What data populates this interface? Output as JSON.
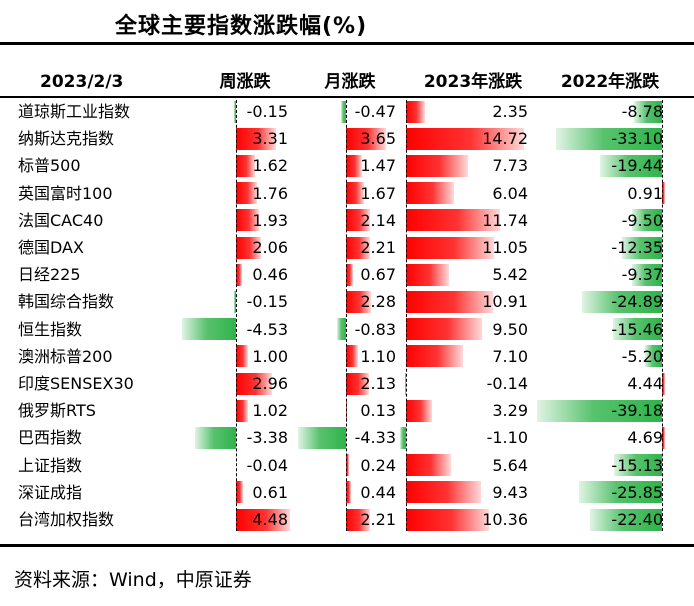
{
  "title": "全球主要指数涨跌幅(%)",
  "source": "资料来源：Wind，中原证券",
  "colors": {
    "positive": "#ff0000",
    "negative": "#2fb34a"
  },
  "chart_data": {
    "type": "table",
    "date_header": "2023/2/3",
    "columns": [
      "周涨跌",
      "月涨跌",
      "2023年涨跌",
      "2022年涨跌"
    ],
    "rows": [
      {
        "name": "道琼斯工业指数",
        "values": [
          -0.15,
          -0.47,
          2.35,
          -8.78
        ]
      },
      {
        "name": "纳斯达克指数",
        "values": [
          3.31,
          3.65,
          14.72,
          -33.1
        ]
      },
      {
        "name": "标普500",
        "values": [
          1.62,
          1.47,
          7.73,
          -19.44
        ]
      },
      {
        "name": "英国富时100",
        "values": [
          1.76,
          1.67,
          6.04,
          0.91
        ]
      },
      {
        "name": "法国CAC40",
        "values": [
          1.93,
          2.14,
          11.74,
          -9.5
        ]
      },
      {
        "name": "德国DAX",
        "values": [
          2.06,
          2.21,
          11.05,
          -12.35
        ]
      },
      {
        "name": "日经225",
        "values": [
          0.46,
          0.67,
          5.42,
          -9.37
        ]
      },
      {
        "name": "韩国综合指数",
        "values": [
          -0.15,
          2.28,
          10.91,
          -24.89
        ]
      },
      {
        "name": "恒生指数",
        "values": [
          -4.53,
          -0.83,
          9.5,
          -15.46
        ]
      },
      {
        "name": "澳洲标普200",
        "values": [
          1.0,
          1.1,
          7.1,
          -5.2
        ]
      },
      {
        "name": "印度SENSEX30",
        "values": [
          2.96,
          2.13,
          -0.14,
          4.44
        ]
      },
      {
        "name": "俄罗斯RTS",
        "values": [
          1.02,
          0.13,
          3.29,
          -39.18
        ]
      },
      {
        "name": "巴西指数",
        "values": [
          -3.38,
          -4.33,
          -1.1,
          4.69
        ]
      },
      {
        "name": "上证指数",
        "values": [
          -0.04,
          0.24,
          5.64,
          -15.13
        ]
      },
      {
        "name": "深证成指",
        "values": [
          0.61,
          0.44,
          9.43,
          -25.85
        ]
      },
      {
        "name": "台湾加权指数",
        "values": [
          4.48,
          2.21,
          10.36,
          -22.4
        ]
      }
    ]
  }
}
